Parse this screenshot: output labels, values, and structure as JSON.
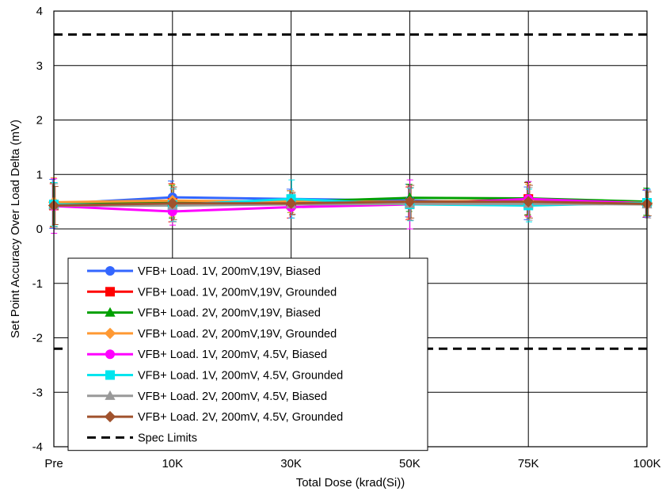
{
  "chart_data": {
    "type": "line",
    "title": "",
    "xlabel": "Total Dose (krad(Si))",
    "ylabel": "Set Point Accuracy Over Load Delta (mV)",
    "categories": [
      "Pre",
      "10K",
      "30K",
      "50K",
      "75K",
      "100K"
    ],
    "ylim": [
      -4,
      4
    ],
    "yticks": [
      -4,
      -3,
      -2,
      -1,
      0,
      1,
      2,
      3,
      4
    ],
    "grid": true,
    "legend_position": "lower-left",
    "series": [
      {
        "name": "VFB+ Load. 1V, 200mV,19V, Biased",
        "color": "#3366ff",
        "marker": "circle",
        "values": [
          0.46,
          0.58,
          0.55,
          0.52,
          0.47,
          0.46
        ],
        "err": [
          0.45,
          0.3,
          0.18,
          0.3,
          0.3,
          0.25
        ]
      },
      {
        "name": "VFB+ Load. 1V, 200mV,19V, Grounded",
        "color": "#ff0000",
        "marker": "square",
        "values": [
          0.43,
          0.48,
          0.45,
          0.47,
          0.55,
          0.47
        ],
        "err": [
          0.4,
          0.35,
          0.25,
          0.3,
          0.3,
          0.25
        ]
      },
      {
        "name": "VFB+ Load. 2V, 200mV,19V, Biased",
        "color": "#00a000",
        "marker": "triangle",
        "values": [
          0.45,
          0.5,
          0.5,
          0.57,
          0.56,
          0.5
        ],
        "err": [
          0.4,
          0.3,
          0.2,
          0.25,
          0.3,
          0.25
        ]
      },
      {
        "name": "VFB+ Load. 2V, 200mV,19V, Grounded",
        "color": "#ff9933",
        "marker": "diamond",
        "values": [
          0.49,
          0.52,
          0.5,
          0.5,
          0.52,
          0.48
        ],
        "err": [
          0.45,
          0.3,
          0.2,
          0.3,
          0.3,
          0.25
        ]
      },
      {
        "name": "VFB+ Load. 1V, 200mV, 4.5V, Biased",
        "color": "#ff00ff",
        "marker": "circle",
        "values": [
          0.42,
          0.32,
          0.4,
          0.45,
          0.55,
          0.47
        ],
        "err": [
          0.5,
          0.25,
          0.2,
          0.45,
          0.32,
          0.25
        ]
      },
      {
        "name": "VFB+ Load. 1V, 200mV, 4.5V, Grounded",
        "color": "#00e5ee",
        "marker": "square",
        "values": [
          0.45,
          0.44,
          0.55,
          0.45,
          0.43,
          0.48
        ],
        "err": [
          0.4,
          0.3,
          0.35,
          0.3,
          0.3,
          0.25
        ]
      },
      {
        "name": "VFB+ Load. 2V, 200mV, 4.5V, Biased",
        "color": "#999999",
        "marker": "triangle",
        "values": [
          0.43,
          0.43,
          0.45,
          0.46,
          0.46,
          0.45
        ],
        "err": [
          0.4,
          0.3,
          0.2,
          0.3,
          0.3,
          0.25
        ]
      },
      {
        "name": "VFB+ Load. 2V, 200mV, 4.5V, Grounded",
        "color": "#a0522d",
        "marker": "diamond",
        "values": [
          0.43,
          0.47,
          0.47,
          0.5,
          0.5,
          0.46
        ],
        "err": [
          0.35,
          0.3,
          0.2,
          0.3,
          0.3,
          0.22
        ]
      }
    ],
    "spec_limits": {
      "name": "Spec Limits",
      "color": "#000000",
      "upper": 3.57,
      "lower": -2.2
    }
  }
}
